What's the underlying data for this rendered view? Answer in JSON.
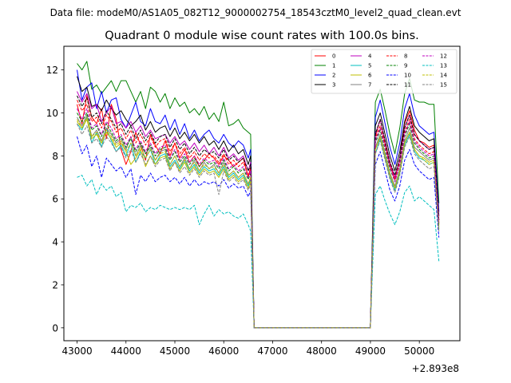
{
  "chart_data": {
    "type": "line",
    "suptitle": "Data file: modeM0/AS1A05_082T12_9000002754_18543cztM0_level2_quad_clean.evt",
    "title": "Quadrant 0 module wise count rates with 100.0s bins.",
    "xlabel": "",
    "ylabel": "",
    "x_offset_label": "+2.893e8",
    "xlim": [
      42730,
      50830
    ],
    "ylim": [
      -0.6,
      13.1
    ],
    "xticks": [
      43000,
      44000,
      45000,
      46000,
      47000,
      48000,
      49000,
      50000
    ],
    "xtick_labels": [
      "43000",
      "44000",
      "45000",
      "46000",
      "47000",
      "48000",
      "49000",
      "50000"
    ],
    "yticks": [
      0,
      2,
      4,
      6,
      8,
      10,
      12
    ],
    "ytick_labels": [
      "0",
      "2",
      "4",
      "6",
      "8",
      "10",
      "12"
    ],
    "gap": {
      "x": [
        46620,
        46700,
        46800,
        46900,
        47000,
        47100,
        47200,
        47300,
        47400,
        47500,
        47600,
        47700,
        47800,
        47900,
        48000,
        48100,
        48200,
        48300,
        48400,
        48500,
        48600,
        48700,
        48800,
        48900,
        49000
      ],
      "value": 0
    },
    "seg1_x": [
      43000,
      43100,
      43200,
      43300,
      43400,
      43500,
      43600,
      43700,
      43800,
      43900,
      44000,
      44100,
      44200,
      44300,
      44400,
      44500,
      44600,
      44700,
      44800,
      44900,
      45000,
      45100,
      45200,
      45300,
      45400,
      45500,
      45600,
      45700,
      45800,
      45900,
      46000,
      46100,
      46200,
      46300,
      46400,
      46500,
      46550,
      46620
    ],
    "seg2_x": [
      49000,
      49100,
      49200,
      49300,
      49400,
      49500,
      49600,
      49700,
      49800,
      49900,
      50000,
      50100,
      50200,
      50300,
      50400
    ],
    "legend": {
      "location": "upper right",
      "columns": 4,
      "entries": [
        "0",
        "1",
        "2",
        "3",
        "4",
        "5",
        "6",
        "7",
        "8",
        "9",
        "10",
        "11",
        "12",
        "13",
        "14",
        "15"
      ]
    },
    "series": [
      {
        "name": "0",
        "color": "#ff0000",
        "dash": "solid",
        "seg1": [
          10.4,
          9.5,
          10.8,
          9.8,
          9.5,
          10.2,
          8.8,
          10.4,
          9.7,
          8.3,
          7.6,
          8.2,
          9.1,
          8.5,
          7.8,
          9.0,
          8.5,
          8.1,
          8.7,
          8.0,
          8.6,
          7.9,
          8.3,
          7.7,
          8.0,
          7.5,
          7.8,
          8.1,
          7.9,
          7.6,
          8.0,
          7.8,
          7.5,
          7.7,
          7.9,
          7.0,
          7.5,
          0.1
        ],
        "seg2": [
          0.1,
          8.9,
          9.7,
          8.6,
          7.6,
          6.9,
          7.9,
          9.5,
          10.1,
          9.2,
          8.7,
          8.6,
          8.4,
          8.5,
          5.0
        ]
      },
      {
        "name": "1",
        "color": "#008000",
        "dash": "solid",
        "seg1": [
          12.3,
          12.0,
          12.4,
          11.1,
          11.3,
          10.9,
          11.2,
          11.5,
          11.0,
          11.5,
          11.5,
          11.0,
          10.5,
          11.0,
          10.2,
          11.2,
          11.0,
          10.5,
          10.9,
          10.2,
          10.7,
          10.3,
          10.5,
          10.0,
          10.2,
          9.9,
          10.3,
          9.7,
          10.0,
          9.6,
          10.5,
          9.4,
          9.5,
          9.7,
          9.3,
          9.1,
          9.0,
          0.1
        ],
        "seg2": [
          0.1,
          10.5,
          11.1,
          10.1,
          9.0,
          8.1,
          9.3,
          10.9,
          11.6,
          10.6,
          10.5,
          10.5,
          10.4,
          10.4,
          5.8
        ]
      },
      {
        "name": "2",
        "color": "#0000ff",
        "dash": "solid",
        "seg1": [
          12.0,
          10.6,
          11.2,
          11.4,
          10.2,
          11.0,
          10.0,
          10.6,
          10.7,
          9.7,
          9.3,
          9.9,
          10.5,
          9.6,
          9.4,
          10.2,
          9.6,
          9.5,
          9.9,
          9.2,
          9.7,
          9.0,
          9.5,
          8.8,
          9.2,
          8.7,
          9.0,
          9.2,
          8.8,
          8.6,
          9.0,
          8.6,
          8.4,
          8.7,
          8.5,
          7.9,
          8.3,
          0.1
        ],
        "seg2": [
          0.1,
          9.8,
          10.6,
          9.5,
          8.4,
          7.6,
          8.6,
          10.2,
          10.9,
          9.9,
          9.4,
          9.2,
          9.0,
          9.1,
          5.4
        ]
      },
      {
        "name": "3",
        "color": "#000000",
        "dash": "solid",
        "seg1": [
          11.7,
          11.0,
          11.2,
          10.3,
          10.4,
          10.1,
          10.6,
          10.2,
          9.9,
          10.1,
          9.7,
          9.4,
          9.6,
          9.9,
          9.2,
          9.6,
          9.1,
          9.3,
          9.4,
          8.9,
          9.3,
          8.8,
          9.1,
          8.7,
          9.0,
          8.6,
          8.9,
          8.5,
          8.7,
          8.3,
          8.7,
          8.2,
          8.5,
          8.1,
          8.3,
          7.6,
          8.0,
          0.1
        ],
        "seg2": [
          0.1,
          9.4,
          10.0,
          9.0,
          8.0,
          7.3,
          8.2,
          9.6,
          10.3,
          9.4,
          9.1,
          8.9,
          8.7,
          8.8,
          5.2
        ]
      },
      {
        "name": "4",
        "color": "#bf00bf",
        "dash": "solid",
        "seg1": [
          11.0,
          10.5,
          10.9,
          10.2,
          10.4,
          9.6,
          10.0,
          10.3,
          9.5,
          9.6,
          9.3,
          9.6,
          9.1,
          9.4,
          8.9,
          9.2,
          8.8,
          8.9,
          9.0,
          8.6,
          8.9,
          8.5,
          8.7,
          8.3,
          8.6,
          8.2,
          8.5,
          8.1,
          8.4,
          8.0,
          8.4,
          7.9,
          8.1,
          7.8,
          8.0,
          7.3,
          7.7,
          0.1
        ],
        "seg2": [
          0.1,
          9.0,
          9.7,
          8.7,
          7.7,
          7.0,
          7.9,
          9.3,
          9.9,
          9.0,
          8.7,
          8.5,
          8.3,
          8.4,
          5.0
        ]
      },
      {
        "name": "5",
        "color": "#00bfbf",
        "dash": "solid",
        "seg1": [
          9.5,
          9.2,
          9.8,
          8.6,
          9.1,
          8.4,
          9.3,
          8.7,
          8.2,
          8.5,
          8.0,
          8.6,
          7.7,
          8.2,
          7.9,
          8.3,
          7.6,
          8.0,
          8.1,
          7.5,
          7.8,
          7.4,
          7.8,
          7.3,
          7.6,
          7.2,
          7.5,
          7.3,
          7.4,
          7.1,
          7.5,
          7.0,
          7.2,
          6.9,
          7.1,
          6.6,
          6.9,
          0.1
        ],
        "seg2": [
          0.1,
          8.1,
          8.8,
          7.9,
          7.0,
          6.4,
          7.2,
          8.5,
          9.0,
          8.2,
          7.9,
          7.8,
          7.6,
          7.7,
          4.6
        ]
      },
      {
        "name": "6",
        "color": "#bfbf00",
        "dash": "solid",
        "seg1": [
          9.6,
          9.3,
          9.7,
          8.8,
          9.0,
          8.6,
          9.1,
          8.8,
          8.4,
          8.6,
          8.2,
          7.6,
          7.9,
          8.3,
          7.5,
          8.0,
          7.6,
          7.9,
          8.0,
          7.4,
          7.7,
          7.3,
          7.7,
          7.2,
          7.5,
          7.1,
          7.4,
          7.2,
          7.3,
          7.0,
          7.4,
          6.9,
          7.1,
          6.8,
          7.0,
          6.5,
          6.8,
          0.1
        ],
        "seg2": [
          0.1,
          8.3,
          8.9,
          8.0,
          7.1,
          6.5,
          7.3,
          8.6,
          9.1,
          8.3,
          8.0,
          7.9,
          7.7,
          7.8,
          4.7
        ]
      },
      {
        "name": "7",
        "color": "#808080",
        "dash": "solid",
        "seg1": [
          9.8,
          9.4,
          9.9,
          8.9,
          9.2,
          8.7,
          9.3,
          9.0,
          8.6,
          8.8,
          8.3,
          8.9,
          8.0,
          8.5,
          8.1,
          8.4,
          7.8,
          8.2,
          8.3,
          7.6,
          8.0,
          7.5,
          7.9,
          7.4,
          7.8,
          7.3,
          7.7,
          7.4,
          7.6,
          7.2,
          7.7,
          7.1,
          7.3,
          7.0,
          7.2,
          6.7,
          7.0,
          0.1
        ],
        "seg2": [
          0.1,
          8.4,
          9.0,
          8.1,
          7.2,
          6.6,
          7.4,
          8.7,
          9.3,
          8.4,
          8.2,
          8.0,
          7.8,
          7.9,
          4.8
        ]
      },
      {
        "name": "8",
        "color": "#ff0000",
        "dash": "dashed",
        "seg1": [
          10.6,
          10.1,
          10.4,
          9.6,
          9.8,
          9.3,
          9.9,
          9.6,
          9.1,
          9.3,
          8.8,
          9.2,
          8.6,
          9.0,
          8.5,
          8.9,
          8.4,
          8.7,
          8.8,
          8.2,
          8.6,
          8.1,
          8.4,
          7.9,
          8.2,
          7.8,
          8.1,
          7.9,
          8.0,
          7.7,
          8.1,
          7.6,
          7.8,
          7.5,
          7.7,
          7.1,
          7.4,
          0.1
        ],
        "seg2": [
          0.1,
          8.8,
          9.4,
          8.5,
          7.5,
          6.9,
          7.7,
          9.1,
          9.7,
          8.8,
          8.5,
          8.3,
          8.1,
          8.2,
          4.9
        ]
      },
      {
        "name": "9",
        "color": "#008000",
        "dash": "dashed",
        "seg1": [
          10.0,
          9.6,
          10.0,
          9.2,
          9.4,
          8.9,
          9.5,
          9.1,
          8.7,
          8.9,
          8.4,
          8.8,
          8.2,
          8.6,
          8.1,
          8.5,
          8.0,
          8.3,
          8.4,
          7.8,
          8.2,
          7.7,
          8.0,
          7.6,
          7.9,
          7.5,
          7.8,
          7.6,
          7.7,
          7.4,
          7.8,
          7.3,
          7.5,
          7.2,
          7.4,
          6.9,
          7.2,
          0.1
        ],
        "seg2": [
          0.1,
          8.6,
          9.2,
          8.3,
          7.4,
          6.8,
          7.6,
          8.9,
          9.5,
          8.6,
          8.3,
          8.1,
          7.9,
          8.0,
          4.8
        ]
      },
      {
        "name": "10",
        "color": "#0000ff",
        "dash": "dashed",
        "seg1": [
          8.9,
          8.1,
          8.5,
          7.5,
          8.0,
          7.0,
          7.9,
          7.6,
          7.3,
          7.5,
          7.0,
          7.4,
          6.2,
          7.1,
          6.8,
          7.2,
          6.8,
          7.0,
          7.1,
          6.8,
          7.0,
          6.7,
          7.0,
          6.6,
          6.9,
          6.6,
          6.8,
          6.7,
          6.8,
          6.6,
          6.9,
          6.5,
          6.7,
          6.5,
          6.6,
          6.1,
          6.4,
          0.1
        ],
        "seg2": [
          0.1,
          7.6,
          8.2,
          7.3,
          6.4,
          5.9,
          6.6,
          7.8,
          8.3,
          7.6,
          7.3,
          7.1,
          6.9,
          7.0,
          4.2
        ]
      },
      {
        "name": "11",
        "color": "#000000",
        "dash": "dashed",
        "seg1": [
          10.8,
          10.3,
          10.7,
          9.8,
          10.0,
          9.5,
          10.1,
          9.7,
          9.3,
          9.5,
          9.0,
          9.4,
          8.8,
          9.2,
          8.7,
          9.1,
          8.6,
          8.9,
          9.0,
          8.4,
          8.8,
          8.3,
          8.6,
          8.1,
          8.4,
          8.0,
          8.3,
          8.1,
          8.2,
          7.9,
          8.3,
          7.8,
          8.0,
          7.7,
          7.9,
          7.3,
          7.6,
          0.1
        ],
        "seg2": [
          0.1,
          9.0,
          9.7,
          8.7,
          7.7,
          7.1,
          7.9,
          9.3,
          9.9,
          9.0,
          8.7,
          8.5,
          8.3,
          8.4,
          5.0
        ]
      },
      {
        "name": "12",
        "color": "#bf00bf",
        "dash": "dashed",
        "seg1": [
          10.2,
          9.7,
          10.2,
          9.3,
          9.5,
          9.0,
          9.6,
          9.3,
          8.8,
          9.0,
          8.5,
          8.9,
          8.3,
          8.7,
          8.2,
          8.6,
          8.1,
          8.4,
          8.5,
          7.9,
          8.3,
          7.8,
          8.1,
          7.7,
          8.0,
          7.6,
          7.9,
          7.7,
          7.8,
          7.5,
          7.9,
          7.4,
          7.6,
          7.3,
          7.5,
          7.0,
          7.3,
          0.1
        ],
        "seg2": [
          0.1,
          8.7,
          9.3,
          8.4,
          7.5,
          6.8,
          7.6,
          9.0,
          9.6,
          8.7,
          8.4,
          8.2,
          8.0,
          8.1,
          4.9
        ]
      },
      {
        "name": "13",
        "color": "#00bfbf",
        "dash": "dashed",
        "seg1": [
          7.0,
          7.1,
          6.6,
          6.9,
          6.2,
          6.7,
          6.4,
          6.6,
          6.1,
          6.3,
          5.4,
          5.7,
          5.6,
          5.8,
          5.4,
          5.6,
          5.5,
          5.7,
          5.6,
          5.5,
          5.6,
          5.5,
          5.6,
          5.5,
          5.7,
          4.8,
          5.3,
          5.7,
          5.2,
          5.5,
          5.3,
          5.4,
          5.2,
          5.1,
          5.3,
          4.8,
          4.5,
          0.1
        ],
        "seg2": [
          0.1,
          6.2,
          6.6,
          5.9,
          5.3,
          4.8,
          5.4,
          6.3,
          6.6,
          5.9,
          6.1,
          5.9,
          5.7,
          5.5,
          3.1
        ]
      },
      {
        "name": "14",
        "color": "#bfbf00",
        "dash": "dashed",
        "seg1": [
          9.7,
          9.3,
          9.8,
          8.9,
          9.1,
          8.6,
          9.2,
          8.9,
          8.5,
          8.7,
          8.2,
          8.6,
          8.0,
          8.4,
          7.9,
          8.3,
          7.8,
          8.1,
          8.2,
          7.6,
          8.0,
          7.5,
          7.8,
          7.4,
          7.7,
          7.3,
          7.6,
          7.4,
          7.5,
          7.2,
          7.6,
          7.1,
          7.3,
          7.0,
          7.2,
          6.7,
          7.0,
          0.1
        ],
        "seg2": [
          0.1,
          8.3,
          8.9,
          8.0,
          7.1,
          6.5,
          7.3,
          8.6,
          9.1,
          8.3,
          8.0,
          7.8,
          7.6,
          7.7,
          4.6
        ]
      },
      {
        "name": "15",
        "color": "#808080",
        "dash": "dashed",
        "seg1": [
          9.5,
          9.0,
          9.4,
          8.6,
          8.8,
          8.4,
          8.9,
          8.6,
          8.2,
          8.4,
          7.9,
          8.3,
          7.7,
          8.1,
          7.6,
          8.0,
          7.5,
          7.8,
          7.9,
          7.3,
          7.7,
          7.2,
          7.5,
          7.1,
          7.4,
          7.0,
          7.3,
          7.1,
          7.2,
          6.2,
          7.3,
          6.8,
          7.0,
          6.7,
          6.9,
          6.4,
          6.7,
          0.1
        ],
        "seg2": [
          0.1,
          8.1,
          8.7,
          7.8,
          6.9,
          6.3,
          7.1,
          8.4,
          8.9,
          8.1,
          7.8,
          7.6,
          7.4,
          7.5,
          4.5
        ]
      }
    ]
  }
}
